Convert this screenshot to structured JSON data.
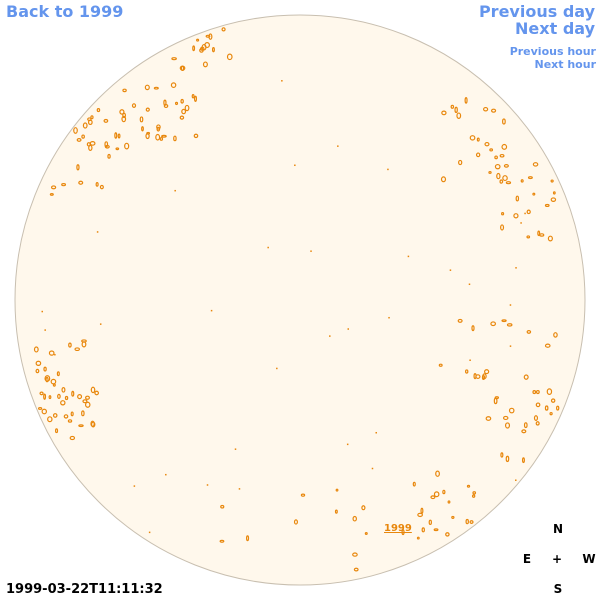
{
  "nav": {
    "back": "Back to 1999",
    "previous_day": "Previous day",
    "next_day": "Next day",
    "previous_hour": "Previous hour",
    "next_hour": "Next hour"
  },
  "timestamp": "1999-03-22T11:11:32",
  "compass": {
    "north": "N",
    "east": "E",
    "center": "+",
    "west": "W",
    "south": "S"
  },
  "disk_label": "1999"
}
